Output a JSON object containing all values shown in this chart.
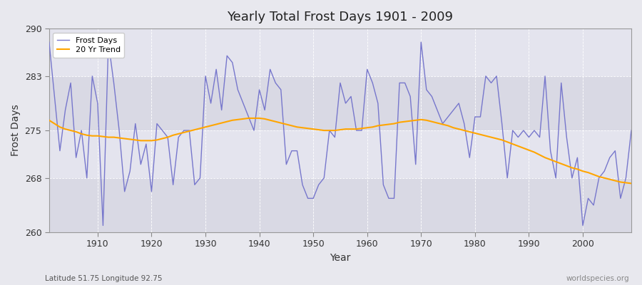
{
  "title": "Yearly Total Frost Days 1901 - 2009",
  "xlabel": "Year",
  "ylabel": "Frost Days",
  "xlim": [
    1901,
    2009
  ],
  "ylim": [
    260,
    290
  ],
  "yticks": [
    260,
    268,
    275,
    283,
    290
  ],
  "xticks": [
    1910,
    1920,
    1930,
    1940,
    1950,
    1960,
    1970,
    1980,
    1990,
    2000
  ],
  "line_color": "#7777cc",
  "trend_color": "#FFA500",
  "bg_color": "#e8e8ee",
  "plot_bg_outer": "#d8d8e4",
  "plot_bg_inner": "#e4e4ee",
  "grid_color": "#ffffff",
  "footnote_left": "Latitude 51.75 Longitude 92.75",
  "footnote_right": "worldspecies.org",
  "legend_labels": [
    "Frost Days",
    "20 Yr Trend"
  ],
  "years": [
    1901,
    1902,
    1903,
    1904,
    1905,
    1906,
    1907,
    1908,
    1909,
    1910,
    1911,
    1912,
    1913,
    1914,
    1915,
    1916,
    1917,
    1918,
    1919,
    1920,
    1921,
    1922,
    1923,
    1924,
    1925,
    1926,
    1927,
    1928,
    1929,
    1930,
    1931,
    1932,
    1933,
    1934,
    1935,
    1936,
    1937,
    1938,
    1939,
    1940,
    1941,
    1942,
    1943,
    1944,
    1945,
    1946,
    1947,
    1948,
    1949,
    1950,
    1951,
    1952,
    1953,
    1954,
    1955,
    1956,
    1957,
    1958,
    1959,
    1960,
    1961,
    1962,
    1963,
    1964,
    1965,
    1966,
    1967,
    1968,
    1969,
    1970,
    1971,
    1972,
    1973,
    1974,
    1975,
    1976,
    1977,
    1978,
    1979,
    1980,
    1981,
    1982,
    1983,
    1984,
    1985,
    1986,
    1987,
    1988,
    1989,
    1990,
    1991,
    1992,
    1993,
    1994,
    1995,
    1996,
    1997,
    1998,
    1999,
    2000,
    2001,
    2002,
    2003,
    2004,
    2005,
    2006,
    2007,
    2008,
    2009
  ],
  "frost_days": [
    288,
    280,
    272,
    278,
    282,
    271,
    275,
    268,
    283,
    279,
    261,
    288,
    282,
    275,
    266,
    269,
    276,
    270,
    273,
    266,
    276,
    275,
    274,
    267,
    274,
    275,
    275,
    267,
    268,
    283,
    279,
    284,
    278,
    286,
    285,
    281,
    279,
    277,
    275,
    281,
    278,
    284,
    282,
    281,
    270,
    272,
    272,
    267,
    265,
    265,
    267,
    268,
    275,
    274,
    282,
    279,
    280,
    275,
    275,
    284,
    282,
    279,
    267,
    265,
    265,
    282,
    282,
    280,
    270,
    288,
    281,
    280,
    278,
    276,
    277,
    278,
    279,
    276,
    271,
    277,
    277,
    283,
    282,
    283,
    276,
    268,
    275,
    274,
    275,
    274,
    275,
    274,
    283,
    272,
    268,
    282,
    274,
    268,
    271,
    261,
    265,
    264,
    268,
    269,
    271,
    272,
    265,
    268,
    275
  ],
  "trend_years": [
    1901,
    1902,
    1903,
    1904,
    1905,
    1906,
    1907,
    1908,
    1909,
    1910,
    1911,
    1912,
    1913,
    1914,
    1915,
    1916,
    1917,
    1918,
    1919,
    1920,
    1921,
    1922,
    1923,
    1924,
    1925,
    1926,
    1927,
    1928,
    1929,
    1930,
    1931,
    1932,
    1933,
    1934,
    1935,
    1936,
    1937,
    1938,
    1939,
    1940,
    1941,
    1942,
    1943,
    1944,
    1945,
    1946,
    1947,
    1948,
    1949,
    1950,
    1951,
    1952,
    1953,
    1954,
    1955,
    1956,
    1957,
    1958,
    1959,
    1960,
    1961,
    1962,
    1963,
    1964,
    1965,
    1966,
    1967,
    1968,
    1969,
    1970,
    1971,
    1972,
    1973,
    1974,
    1975,
    1976,
    1977,
    1978,
    1979,
    1980,
    1981,
    1982,
    1983,
    1984,
    1985,
    1986,
    1987,
    1988,
    1989,
    1990,
    1991,
    1992,
    1993,
    1994,
    1995,
    1996,
    1997,
    1998,
    1999,
    2000,
    2001,
    2002,
    2003,
    2004,
    2005,
    2006,
    2007,
    2008,
    2009
  ],
  "trend_values": [
    276.5,
    276.0,
    275.5,
    275.2,
    275.0,
    274.8,
    274.5,
    274.3,
    274.2,
    274.2,
    274.1,
    274.0,
    274.0,
    273.9,
    273.8,
    273.7,
    273.6,
    273.5,
    273.5,
    273.5,
    273.6,
    273.8,
    274.0,
    274.3,
    274.5,
    274.7,
    274.9,
    275.1,
    275.3,
    275.5,
    275.7,
    275.9,
    276.1,
    276.3,
    276.5,
    276.6,
    276.7,
    276.8,
    276.8,
    276.8,
    276.7,
    276.5,
    276.3,
    276.1,
    275.9,
    275.7,
    275.5,
    275.4,
    275.3,
    275.2,
    275.1,
    275.0,
    275.0,
    275.0,
    275.1,
    275.2,
    275.2,
    275.2,
    275.3,
    275.4,
    275.5,
    275.7,
    275.8,
    275.9,
    276.0,
    276.2,
    276.3,
    276.4,
    276.5,
    276.6,
    276.5,
    276.3,
    276.1,
    275.9,
    275.7,
    275.4,
    275.2,
    275.0,
    274.8,
    274.6,
    274.4,
    274.2,
    274.0,
    273.8,
    273.6,
    273.3,
    273.0,
    272.7,
    272.4,
    272.1,
    271.8,
    271.4,
    271.0,
    270.7,
    270.4,
    270.1,
    269.8,
    269.5,
    269.3,
    269.0,
    268.8,
    268.5,
    268.2,
    268.0,
    267.8,
    267.6,
    267.4,
    267.3,
    267.2
  ]
}
